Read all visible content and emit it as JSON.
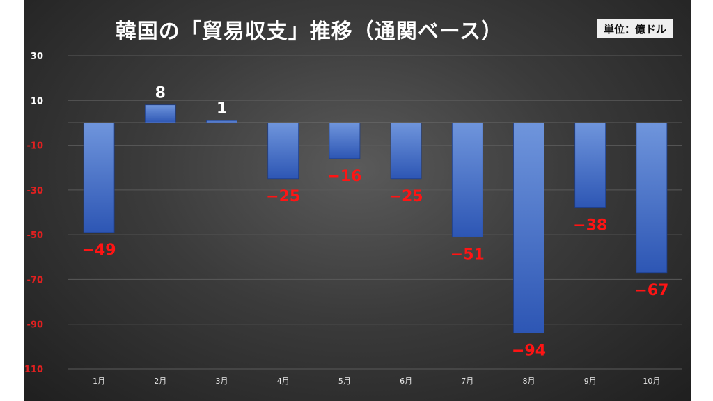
{
  "chart_data": {
    "type": "bar",
    "title": "韓国の「貿易収支」推移（通関ベース）",
    "unit_label": "単位：億ドル",
    "categories": [
      "1月",
      "2月",
      "3月",
      "4月",
      "5月",
      "6月",
      "7月",
      "8月",
      "9月",
      "10月"
    ],
    "values": [
      -49,
      8,
      1,
      -25,
      -16,
      -25,
      -51,
      -94,
      -38,
      -67
    ],
    "value_labels": [
      "−49",
      "8",
      "1",
      "−25",
      "−16",
      "−25",
      "−51",
      "−94",
      "−38",
      "−67"
    ],
    "y_ticks": [
      30,
      10,
      -10,
      -30,
      -50,
      -70,
      -90,
      -110
    ],
    "ylim": [
      -110,
      30
    ],
    "xlabel": "",
    "ylabel": "",
    "grid": true,
    "legend": "none",
    "colors": {
      "bar_top": "#6f95dc",
      "bar_bottom": "#2d56b4",
      "positive_label": "#ffffff",
      "negative_label": "#ff1414",
      "positive_tick": "#ffffff",
      "negative_tick": "#e02020",
      "zero_line": "#d8d8d8",
      "grid": "#5a5a5a"
    }
  }
}
